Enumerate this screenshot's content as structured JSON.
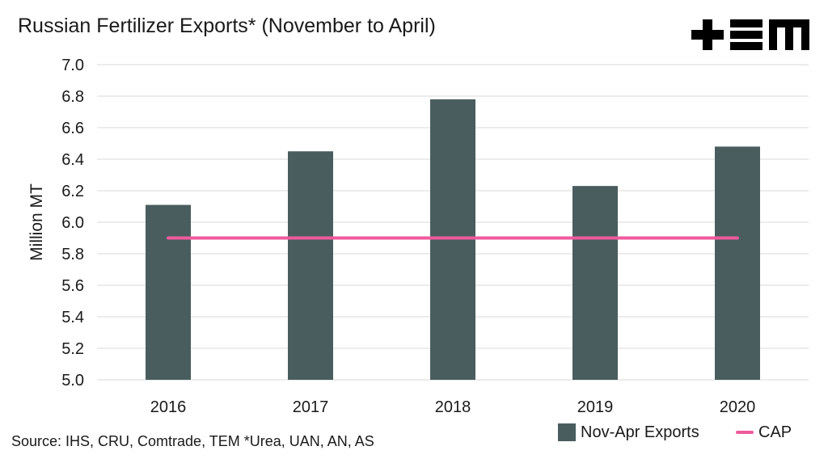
{
  "chart_data": {
    "type": "bar",
    "title": "Russian Fertilizer Exports* (November to April)",
    "ylabel": "Million MT",
    "xlabel": "",
    "ylim": [
      5.0,
      7.0
    ],
    "yticks": [
      "5.0",
      "5.2",
      "5.4",
      "5.6",
      "5.8",
      "6.0",
      "6.2",
      "6.4",
      "6.6",
      "6.8",
      "7.0"
    ],
    "categories": [
      "2016",
      "2017",
      "2018",
      "2019",
      "2020"
    ],
    "series": [
      {
        "name": "Nov-Apr Exports",
        "type": "bar",
        "values": [
          6.11,
          6.45,
          6.78,
          6.23,
          6.48
        ],
        "color": "#4a5d5e"
      },
      {
        "name": "CAP",
        "type": "line",
        "values": [
          5.9,
          5.9,
          5.9,
          5.9,
          5.9
        ],
        "color": "#ee5a9c"
      }
    ],
    "grid": true,
    "legend_position": "bottom-right"
  },
  "footer": {
    "source": "Source: IHS, CRU, Comtrade, TEM   *Urea, UAN, AN, AS"
  },
  "brand": {
    "logo_icon": "tem-logo"
  }
}
